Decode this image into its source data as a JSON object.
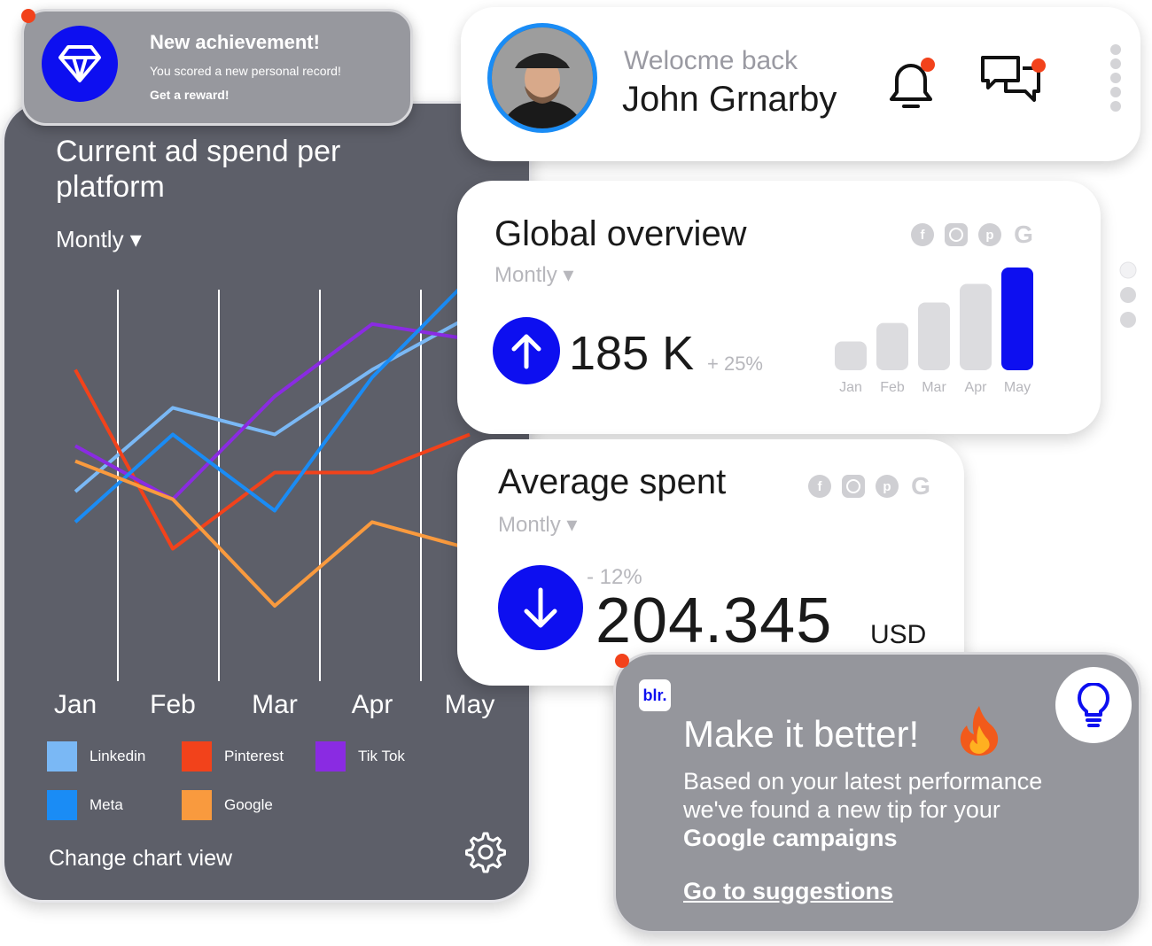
{
  "achievement": {
    "title": "New achievement!",
    "description": "You scored a new personal record!",
    "link": "Get a reward!"
  },
  "header": {
    "welcome": "Welocme back",
    "user_name": "John Grnarby"
  },
  "chart_panel": {
    "title": "Current ad spend per platform",
    "period": "Montly ▾",
    "change_view": "Change chart view"
  },
  "chart_data": {
    "type": "line",
    "categories": [
      "Jan",
      "Feb",
      "Mar",
      "Apr",
      "May"
    ],
    "series": [
      {
        "name": "Linkedin",
        "color": "#7ab8f5",
        "values": [
          40,
          62,
          55,
          72,
          86
        ]
      },
      {
        "name": "Pinterest",
        "color": "#f2421b",
        "values": [
          72,
          25,
          45,
          45,
          55
        ]
      },
      {
        "name": "Tik Tok",
        "color": "#8a2be2",
        "values": [
          52,
          38,
          65,
          84,
          80
        ]
      },
      {
        "name": "Meta",
        "color": "#1a8cf5",
        "values": [
          32,
          55,
          35,
          70,
          96
        ]
      },
      {
        "name": "Google",
        "color": "#f99a3e",
        "values": [
          48,
          38,
          10,
          32,
          25
        ]
      }
    ],
    "title": "Current ad spend per platform",
    "xlabel": "",
    "ylabel": "",
    "grid": "vertical",
    "legend": "bottom"
  },
  "legend": [
    {
      "label": "Linkedin",
      "color": "#7ab8f5"
    },
    {
      "label": "Pinterest",
      "color": "#f2421b"
    },
    {
      "label": "Tik Tok",
      "color": "#8a2be2"
    },
    {
      "label": "Meta",
      "color": "#1a8cf5"
    },
    {
      "label": "Google",
      "color": "#f99a3e"
    }
  ],
  "global_overview": {
    "title": "Global overview",
    "period": "Montly ▾",
    "value": "185 K",
    "change": "+ 25%",
    "bars": {
      "months": [
        "Jan",
        "Feb",
        "Mar",
        "Apr",
        "May"
      ],
      "values": [
        28,
        46,
        66,
        84,
        100
      ],
      "highlight_color": "#0d0ff0",
      "base_color": "#dcdcdf"
    }
  },
  "average_spent": {
    "title": "Average spent",
    "period": "Montly ▾",
    "change": "- 12%",
    "value": "204.345",
    "unit": "USD"
  },
  "tip": {
    "logo": "blr.",
    "title": "Make it better!",
    "line1": "Based on your latest performance",
    "line2": "we've found a new tip for your",
    "line3": "Google campaigns",
    "link": "Go to suggestions"
  },
  "colors": {
    "accent": "#0d0ff0",
    "notification": "#f2421b",
    "panel": "#5d5f69"
  }
}
